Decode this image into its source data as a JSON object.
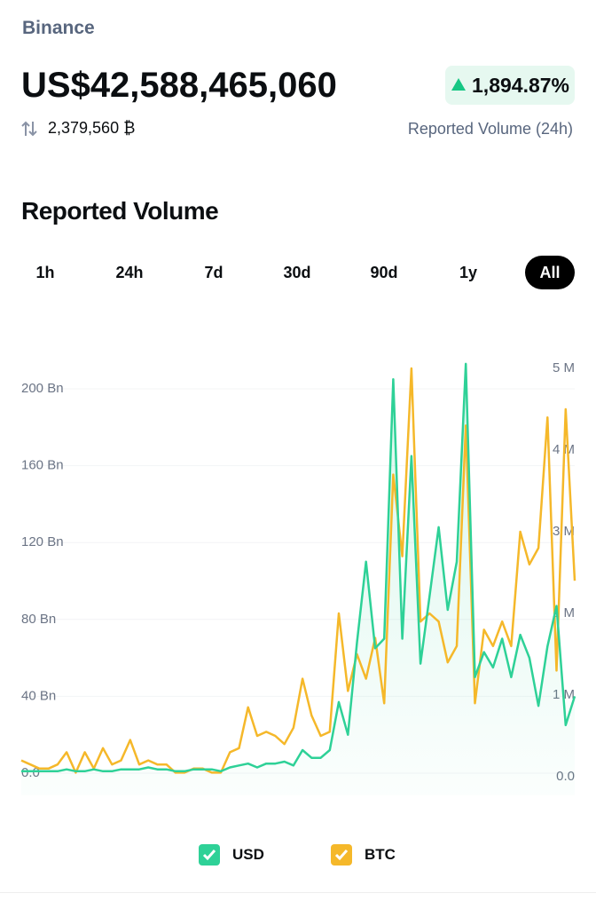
{
  "header": {
    "exchange": "Binance",
    "volume": "US$42,588,465,060",
    "change": "1,894.87%",
    "btc_volume": "2,379,560 ₿",
    "volume_label": "Reported Volume (24h)"
  },
  "section_title": "Reported Volume",
  "tabs": [
    "1h",
    "24h",
    "7d",
    "30d",
    "90d",
    "1y",
    "All"
  ],
  "selected_tab": "All",
  "chart_data": {
    "type": "line",
    "ylim": [
      0,
      200
    ],
    "yticks": [
      {
        "value": 0,
        "label": "0.0"
      },
      {
        "value": 40,
        "label": "40 Bn"
      },
      {
        "value": 80,
        "label": "80 Bn"
      },
      {
        "value": 120,
        "label": "120 Bn"
      },
      {
        "value": 160,
        "label": "160 Bn"
      },
      {
        "value": 200,
        "label": "200 Bn"
      }
    ],
    "y2lim": [
      0,
      5
    ],
    "y2ticks": [
      {
        "value": 0,
        "label": "0.0"
      },
      {
        "value": 1,
        "label": "1 M"
      },
      {
        "value": 2,
        "label": "2 M"
      },
      {
        "value": 3,
        "label": "3 M"
      },
      {
        "value": 4,
        "label": "4 M"
      },
      {
        "value": 5,
        "label": "5 M"
      }
    ],
    "grid": true,
    "series": [
      {
        "name": "USD",
        "color": "#2ed197",
        "values": [
          1,
          1,
          1,
          1,
          1,
          2,
          1,
          1,
          2,
          1,
          1,
          2,
          2,
          2,
          3,
          2,
          2,
          1,
          1,
          2,
          2,
          2,
          1,
          3,
          4,
          5,
          3,
          5,
          5,
          6,
          4,
          12,
          8,
          8,
          12,
          37,
          20,
          68,
          110,
          65,
          70,
          205,
          70,
          165,
          57,
          92,
          128,
          85,
          110,
          213,
          50,
          63,
          55,
          70,
          50,
          72,
          60,
          35,
          66,
          87,
          25,
          40
        ]
      },
      {
        "name": "BTC",
        "color": "#f5b82a",
        "axis": "y2",
        "values": [
          0.2,
          0.15,
          0.1,
          0.1,
          0.15,
          0.3,
          0.05,
          0.3,
          0.1,
          0.35,
          0.15,
          0.2,
          0.45,
          0.15,
          0.2,
          0.15,
          0.15,
          0.05,
          0.05,
          0.1,
          0.1,
          0.05,
          0.05,
          0.3,
          0.35,
          0.85,
          0.5,
          0.55,
          0.5,
          0.4,
          0.6,
          1.2,
          0.75,
          0.5,
          0.55,
          2.0,
          1.05,
          1.5,
          1.2,
          1.7,
          0.9,
          3.7,
          2.7,
          5.0,
          1.9,
          2.0,
          1.9,
          1.4,
          1.6,
          4.3,
          0.9,
          1.8,
          1.6,
          1.9,
          1.6,
          3.0,
          2.6,
          2.8,
          4.4,
          1.3,
          4.5,
          2.4
        ]
      }
    ]
  }
}
